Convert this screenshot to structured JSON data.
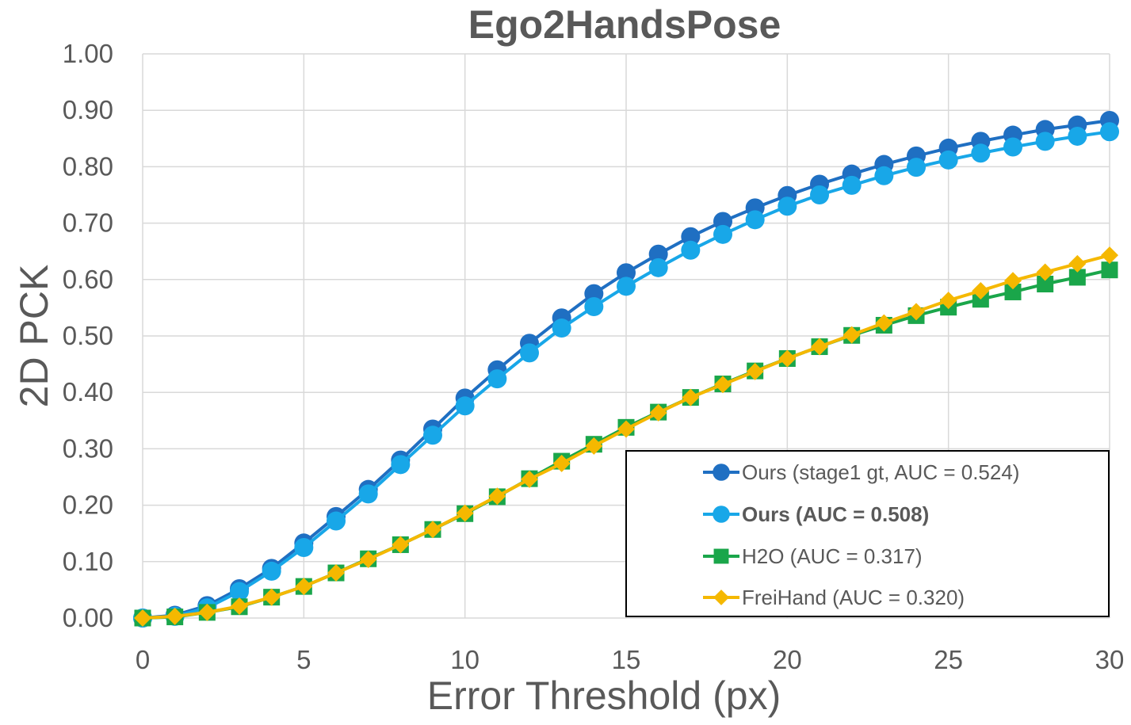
{
  "chart_data": {
    "type": "line",
    "title": "Ego2HandsPose",
    "xlabel": "Error Threshold (px)",
    "ylabel": "2D PCK",
    "xlim": [
      0,
      30
    ],
    "ylim": [
      0,
      1.0
    ],
    "x_ticks": [
      "0",
      "5",
      "10",
      "15",
      "20",
      "25",
      "30"
    ],
    "y_ticks": [
      "0.00",
      "0.10",
      "0.20",
      "0.30",
      "0.40",
      "0.50",
      "0.60",
      "0.70",
      "0.80",
      "0.90",
      "1.00"
    ],
    "grid": "vertical and horizontal",
    "legend_position": "bottom-right",
    "x": [
      0,
      1,
      2,
      3,
      4,
      5,
      6,
      7,
      8,
      9,
      10,
      11,
      12,
      13,
      14,
      15,
      16,
      17,
      18,
      19,
      20,
      21,
      22,
      23,
      24,
      25,
      26,
      27,
      28,
      29,
      30
    ],
    "series": [
      {
        "name": "Ours (stage1 gt, AUC = 0.524)",
        "color": "#1f6fc2",
        "marker": "circle",
        "bold": false,
        "values": [
          0.0,
          0.005,
          0.022,
          0.052,
          0.088,
          0.133,
          0.18,
          0.228,
          0.28,
          0.335,
          0.39,
          0.44,
          0.487,
          0.532,
          0.575,
          0.612,
          0.645,
          0.676,
          0.703,
          0.727,
          0.749,
          0.769,
          0.787,
          0.804,
          0.819,
          0.833,
          0.845,
          0.856,
          0.866,
          0.874,
          0.882
        ]
      },
      {
        "name": "Ours (AUC = 0.508)",
        "color": "#18a7e8",
        "marker": "circle",
        "bold": true,
        "values": [
          0.0,
          0.003,
          0.018,
          0.047,
          0.083,
          0.125,
          0.172,
          0.22,
          0.272,
          0.324,
          0.376,
          0.424,
          0.47,
          0.514,
          0.552,
          0.588,
          0.621,
          0.652,
          0.68,
          0.706,
          0.73,
          0.75,
          0.767,
          0.784,
          0.799,
          0.812,
          0.824,
          0.835,
          0.845,
          0.854,
          0.862
        ]
      },
      {
        "name": "H2O (AUC = 0.317)",
        "color": "#1aa64a",
        "marker": "square",
        "bold": false,
        "values": [
          0.0,
          0.002,
          0.01,
          0.02,
          0.037,
          0.056,
          0.08,
          0.105,
          0.13,
          0.157,
          0.185,
          0.215,
          0.247,
          0.278,
          0.308,
          0.338,
          0.365,
          0.391,
          0.415,
          0.438,
          0.46,
          0.481,
          0.501,
          0.519,
          0.536,
          0.551,
          0.565,
          0.578,
          0.592,
          0.604,
          0.617
        ]
      },
      {
        "name": "FreiHand (AUC = 0.320)",
        "color": "#f5b800",
        "marker": "diamond",
        "bold": false,
        "values": [
          0.0,
          0.003,
          0.01,
          0.021,
          0.037,
          0.056,
          0.08,
          0.104,
          0.13,
          0.157,
          0.186,
          0.216,
          0.246,
          0.274,
          0.305,
          0.335,
          0.364,
          0.391,
          0.414,
          0.437,
          0.46,
          0.481,
          0.502,
          0.523,
          0.543,
          0.563,
          0.58,
          0.598,
          0.613,
          0.628,
          0.643
        ]
      }
    ]
  }
}
